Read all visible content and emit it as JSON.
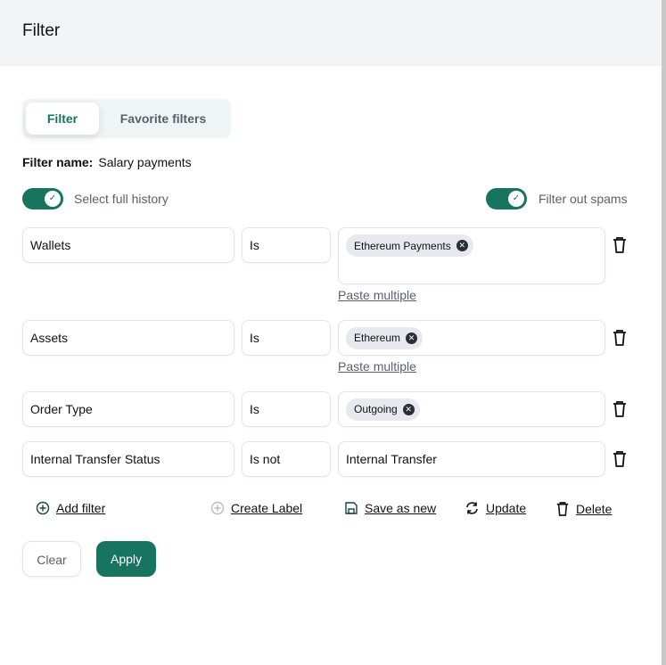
{
  "header": {
    "title": "Filter"
  },
  "tabs": [
    {
      "label": "Filter",
      "active": true
    },
    {
      "label": "Favorite filters",
      "active": false
    }
  ],
  "filter_name": {
    "label": "Filter name:",
    "value": "Salary payments"
  },
  "toggles": {
    "full_history": {
      "label": "Select full history",
      "on": true
    },
    "spams": {
      "label": "Filter out spams",
      "on": true
    }
  },
  "rows": [
    {
      "field": "Wallets",
      "operator": "Is",
      "chips": [
        "Ethereum Payments"
      ],
      "paste": "Paste multiple"
    },
    {
      "field": "Assets",
      "operator": "Is",
      "chips": [
        "Ethereum"
      ],
      "paste": "Paste multiple"
    },
    {
      "field": "Order Type",
      "operator": "Is",
      "chips": [
        "Outgoing"
      ]
    },
    {
      "field": "Internal Transfer Status",
      "operator": "Is not",
      "value": "Internal Transfer"
    }
  ],
  "actions": {
    "add_filter": "Add filter",
    "create_label": "Create Label",
    "save_as_new": "Save as new",
    "update": "Update",
    "delete": "Delete"
  },
  "buttons": {
    "clear": "Clear",
    "apply": "Apply"
  },
  "colors": {
    "accent": "#17745f",
    "header_bg": "#f2f3f5"
  }
}
